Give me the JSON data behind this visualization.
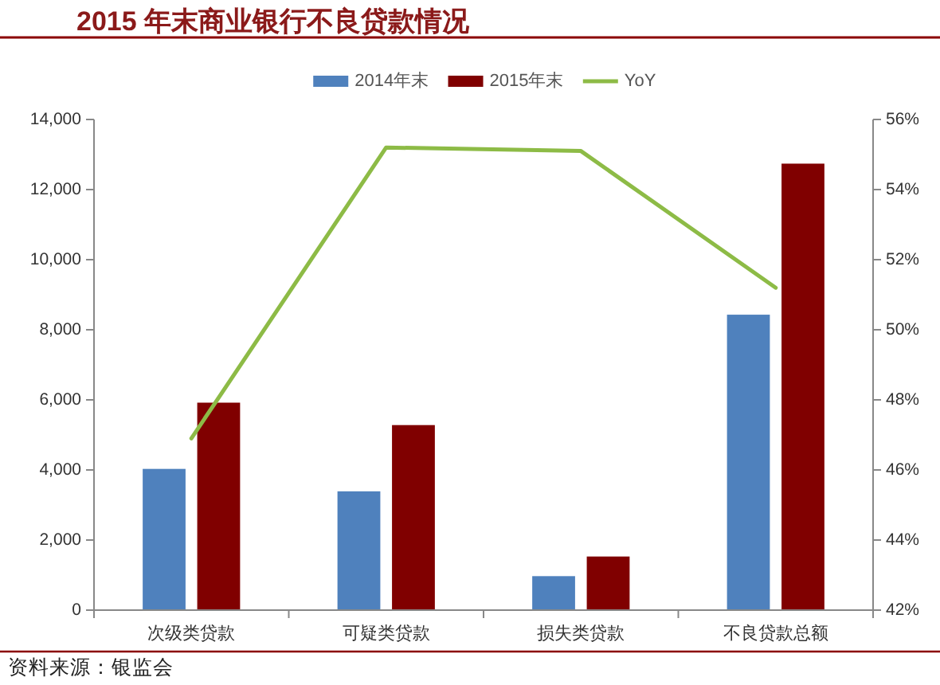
{
  "chart_data": {
    "type": "bar",
    "title": "2015 年末商业银行不良贷款情况",
    "categories": [
      "次级类贷款",
      "可疑类贷款",
      "损失类贷款",
      "不良贷款总额"
    ],
    "series": [
      {
        "name": "2014年末",
        "color": "#4f81bd",
        "values": [
          4030,
          3390,
          970,
          8430
        ]
      },
      {
        "name": "2015年末",
        "color": "#800000",
        "values": [
          5920,
          5280,
          1530,
          12740
        ]
      },
      {
        "name": "YoY",
        "type": "line",
        "axis": "y2",
        "color": "#8dbb46",
        "values": [
          46.9,
          55.2,
          55.1,
          51.2
        ]
      }
    ],
    "ylim": [
      0,
      14000
    ],
    "yticks": [
      0,
      {
        "value": 2000,
        "label": "2,000"
      },
      {
        "value": 4000,
        "label": "4,000"
      },
      {
        "value": 6000,
        "label": "6,000"
      },
      {
        "value": 8000,
        "label": "8,000"
      },
      {
        "value": 10000,
        "label": "10,000"
      },
      {
        "value": 12000,
        "label": "12,000"
      },
      {
        "value": 14000,
        "label": "14,000"
      }
    ],
    "y2lim": [
      42,
      56
    ],
    "y2ticks": [
      {
        "value": 42,
        "label": "42%"
      },
      {
        "value": 44,
        "label": "44%"
      },
      {
        "value": 46,
        "label": "46%"
      },
      {
        "value": 48,
        "label": "48%"
      },
      {
        "value": 50,
        "label": "50%"
      },
      {
        "value": 52,
        "label": "52%"
      },
      {
        "value": 54,
        "label": "54%"
      },
      {
        "value": 56,
        "label": "56%"
      }
    ],
    "legend": "top",
    "annotations": [
      "资料来源：银监会"
    ]
  }
}
